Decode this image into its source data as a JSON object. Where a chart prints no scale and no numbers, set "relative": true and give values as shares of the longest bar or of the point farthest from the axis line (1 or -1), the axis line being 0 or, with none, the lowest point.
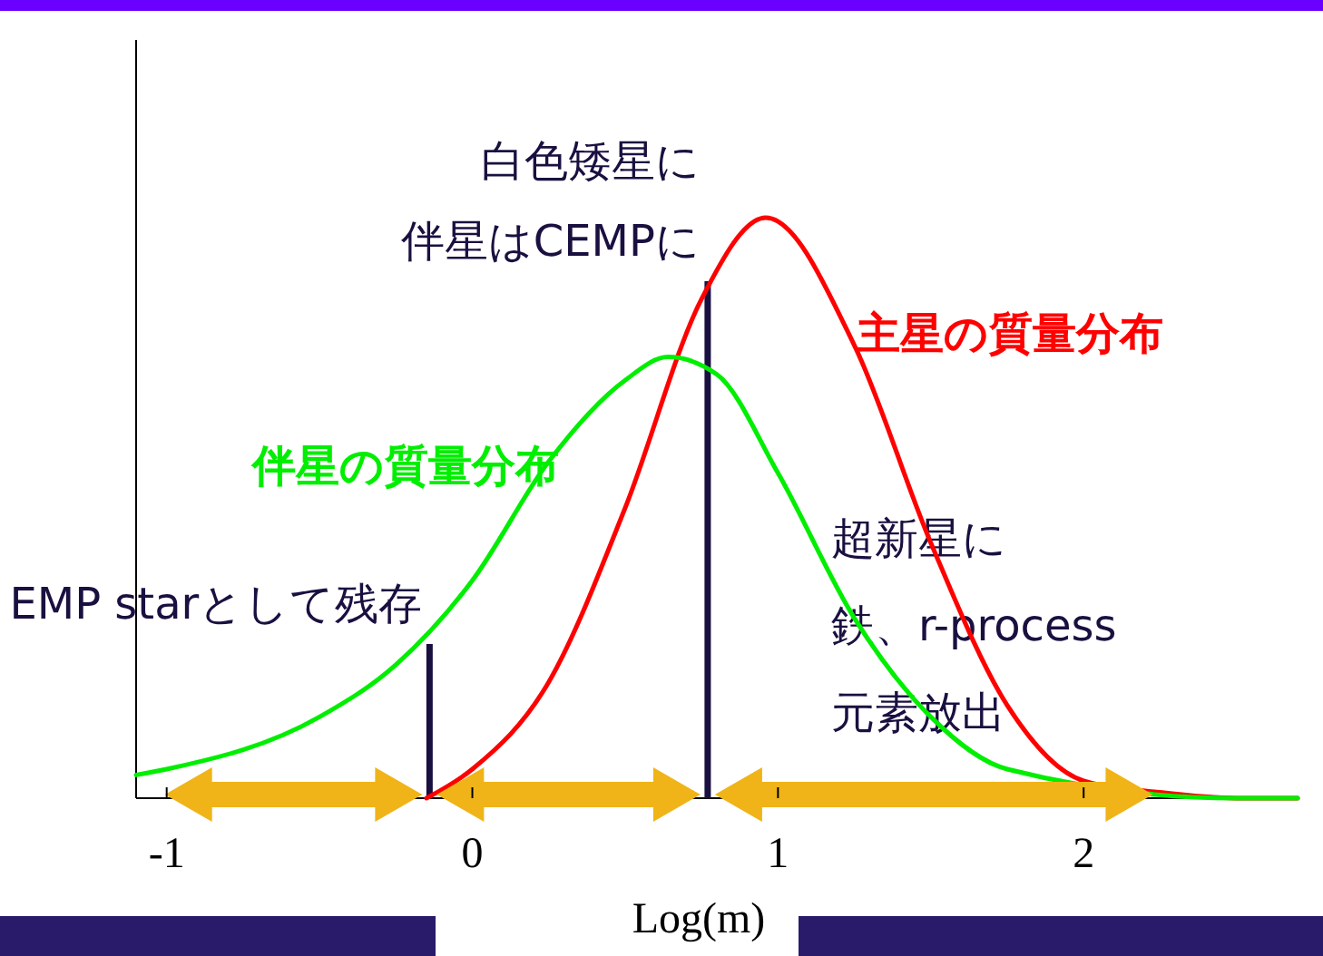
{
  "chart_data": {
    "type": "line",
    "relative": true,
    "xlabel": "Log(m)",
    "xlim": [
      -1.1,
      2.7
    ],
    "xticks": [
      -1,
      0,
      1,
      2
    ],
    "grid": false,
    "legend": false,
    "marker": "none",
    "line_style": "solid",
    "series": [
      {
        "name": "主星の質量分布",
        "color": "#ff0000",
        "x": [
          -0.15,
          0,
          0.25,
          0.5,
          0.75,
          0.96,
          1.25,
          1.5,
          1.75,
          2,
          2.25,
          2.5,
          2.7
        ],
        "values": [
          0,
          0.05,
          0.2,
          0.5,
          0.86,
          1,
          0.78,
          0.44,
          0.16,
          0.03,
          0.01,
          0,
          0
        ]
      },
      {
        "name": "伴星の質量分布",
        "color": "#00ee00",
        "x": [
          -1.1,
          -1,
          -0.5,
          -0.25,
          0,
          0.25,
          0.5,
          0.64,
          0.8,
          1,
          1.25,
          1.5,
          1.75,
          2.5,
          2.7
        ],
        "values": [
          0.04,
          0.05,
          0.14,
          0.23,
          0.375,
          0.58,
          0.72,
          0.76,
          0.73,
          0.56,
          0.31,
          0.14,
          0.05,
          0,
          0
        ]
      }
    ],
    "ref_lines": [
      {
        "axis": "x",
        "value": -0.14,
        "label": "EMP starとして残存",
        "color": "#1a1040"
      },
      {
        "axis": "x",
        "value": 0.77,
        "label": "白色矮星に伴星はCEMPに",
        "color": "#1a1040"
      }
    ],
    "annotations": [
      "超新星に鉄、r-process元素放出"
    ]
  }
}
